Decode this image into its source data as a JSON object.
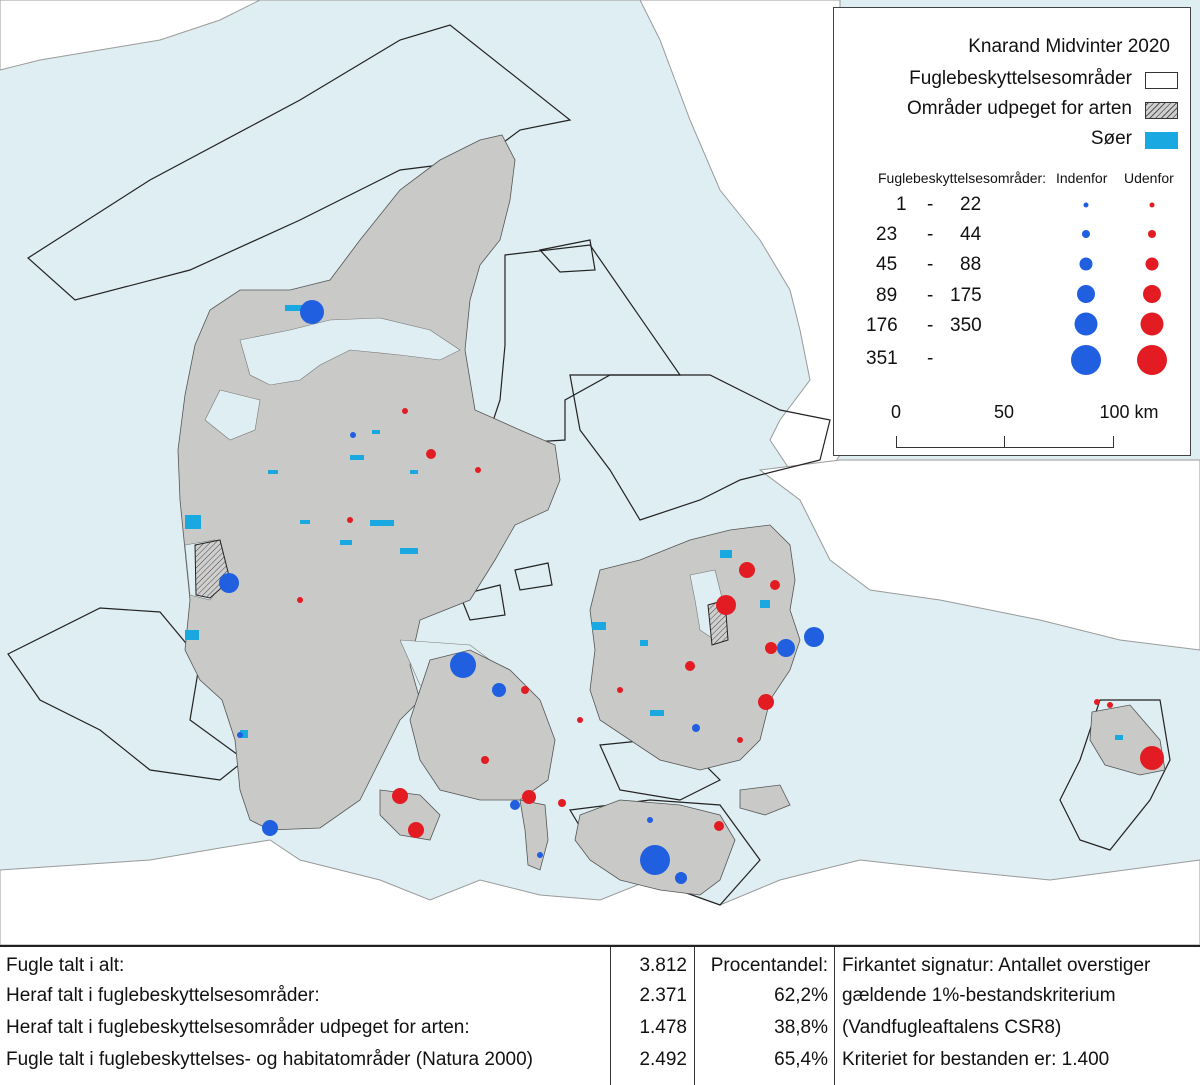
{
  "legend": {
    "title": "Knarand Midvinter 2020",
    "items": [
      {
        "label": "Fuglebeskyttelsesområder",
        "swatch": "white"
      },
      {
        "label": "Områder udpeget for arten",
        "swatch": "hatched"
      },
      {
        "label": "Søer",
        "swatch": "lake"
      }
    ],
    "count_header": "Fuglebeskyttelsesområder:",
    "col_inside": "Indenfor",
    "col_outside": "Udenfor",
    "ranges": [
      {
        "from": "1",
        "dash": "-",
        "to": "22"
      },
      {
        "from": "23",
        "dash": "-",
        "to": "44"
      },
      {
        "from": "45",
        "dash": "-",
        "to": "88"
      },
      {
        "from": "89",
        "dash": "-",
        "to": "175"
      },
      {
        "from": "176",
        "dash": "-",
        "to": "350"
      },
      {
        "from": "351",
        "dash": "-",
        "to": ""
      }
    ],
    "scale": {
      "zero": "0",
      "mid": "50",
      "end": "100 km"
    }
  },
  "stats": {
    "rows": [
      {
        "label": "Fugle talt i alt:",
        "count": "3.812",
        "pct": "Procentandel:",
        "note": "Firkantet signatur: Antallet overstiger"
      },
      {
        "label": "Heraf talt i fuglebeskyttelsesområder:",
        "count": "2.371",
        "pct": "62,2%",
        "note": "gældende 1%-bestandskriterium"
      },
      {
        "label": "Heraf talt i fuglebeskyttelsesområder udpeget for arten:",
        "count": "1.478",
        "pct": "38,8%",
        "note": "(Vandfugleaftalens CSR8)"
      },
      {
        "label": "Fugle talt i fuglebeskyttelses- og habitatområder (Natura 2000)",
        "count": "2.492",
        "pct": "65,4%",
        "note": "Kriteriet for bestanden er: 1.400"
      }
    ]
  },
  "colors": {
    "sea": "#dfeef2",
    "land": "#c9c9c7",
    "lake": "#19a8df",
    "inside": "#1f5fe0",
    "outside": "#e21c22"
  }
}
